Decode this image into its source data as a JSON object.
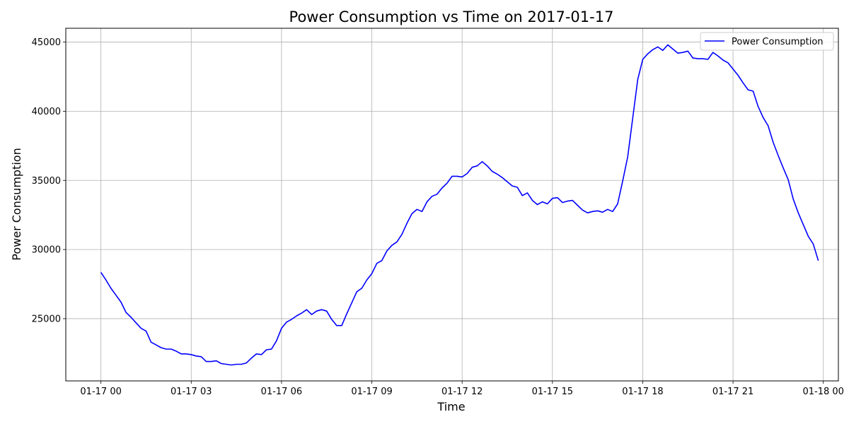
{
  "chart_data": {
    "type": "line",
    "title": "Power Consumption vs Time on 2017-01-17",
    "xlabel": "Time",
    "ylabel": "Power Consumption",
    "xlim": [
      "2017-01-16T22:50",
      "2017-01-18T00:30"
    ],
    "ylim": [
      20500,
      46000
    ],
    "x_ticks": [
      {
        "t": "2017-01-17T00:00",
        "label": "01-17 00"
      },
      {
        "t": "2017-01-17T03:00",
        "label": "01-17 03"
      },
      {
        "t": "2017-01-17T06:00",
        "label": "01-17 06"
      },
      {
        "t": "2017-01-17T09:00",
        "label": "01-17 09"
      },
      {
        "t": "2017-01-17T12:00",
        "label": "01-17 12"
      },
      {
        "t": "2017-01-17T15:00",
        "label": "01-17 15"
      },
      {
        "t": "2017-01-17T18:00",
        "label": "01-17 18"
      },
      {
        "t": "2017-01-17T21:00",
        "label": "01-17 21"
      },
      {
        "t": "2017-01-18T00:00",
        "label": "01-18 00"
      }
    ],
    "y_ticks": [
      {
        "v": 25000,
        "label": "25000"
      },
      {
        "v": 30000,
        "label": "30000"
      },
      {
        "v": 35000,
        "label": "35000"
      },
      {
        "v": 40000,
        "label": "40000"
      },
      {
        "v": 45000,
        "label": "45000"
      }
    ],
    "grid": true,
    "legend_position": "top-right",
    "series": [
      {
        "name": "Power Consumption",
        "color": "#0000ff",
        "x": [
          "2017-01-17T00:00",
          "2017-01-17T00:10",
          "2017-01-17T00:20",
          "2017-01-17T00:30",
          "2017-01-17T00:40",
          "2017-01-17T00:50",
          "2017-01-17T01:00",
          "2017-01-17T01:10",
          "2017-01-17T01:20",
          "2017-01-17T01:30",
          "2017-01-17T01:40",
          "2017-01-17T01:50",
          "2017-01-17T02:00",
          "2017-01-17T02:10",
          "2017-01-17T02:20",
          "2017-01-17T02:30",
          "2017-01-17T02:40",
          "2017-01-17T02:50",
          "2017-01-17T03:00",
          "2017-01-17T03:10",
          "2017-01-17T03:20",
          "2017-01-17T03:30",
          "2017-01-17T03:40",
          "2017-01-17T03:50",
          "2017-01-17T04:00",
          "2017-01-17T04:10",
          "2017-01-17T04:20",
          "2017-01-17T04:30",
          "2017-01-17T04:40",
          "2017-01-17T04:50",
          "2017-01-17T05:00",
          "2017-01-17T05:10",
          "2017-01-17T05:20",
          "2017-01-17T05:30",
          "2017-01-17T05:40",
          "2017-01-17T05:50",
          "2017-01-17T06:00",
          "2017-01-17T06:10",
          "2017-01-17T06:20",
          "2017-01-17T06:30",
          "2017-01-17T06:40",
          "2017-01-17T06:50",
          "2017-01-17T07:00",
          "2017-01-17T07:10",
          "2017-01-17T07:20",
          "2017-01-17T07:30",
          "2017-01-17T07:40",
          "2017-01-17T07:50",
          "2017-01-17T08:00",
          "2017-01-17T08:10",
          "2017-01-17T08:20",
          "2017-01-17T08:30",
          "2017-01-17T08:40",
          "2017-01-17T08:50",
          "2017-01-17T09:00",
          "2017-01-17T09:10",
          "2017-01-17T09:20",
          "2017-01-17T09:30",
          "2017-01-17T09:40",
          "2017-01-17T09:50",
          "2017-01-17T10:00",
          "2017-01-17T10:10",
          "2017-01-17T10:20",
          "2017-01-17T10:30",
          "2017-01-17T10:40",
          "2017-01-17T10:50",
          "2017-01-17T11:00",
          "2017-01-17T11:10",
          "2017-01-17T11:20",
          "2017-01-17T11:30",
          "2017-01-17T11:40",
          "2017-01-17T11:50",
          "2017-01-17T12:00",
          "2017-01-17T12:10",
          "2017-01-17T12:20",
          "2017-01-17T12:30",
          "2017-01-17T12:40",
          "2017-01-17T12:50",
          "2017-01-17T13:00",
          "2017-01-17T13:10",
          "2017-01-17T13:20",
          "2017-01-17T13:30",
          "2017-01-17T13:40",
          "2017-01-17T13:50",
          "2017-01-17T14:00",
          "2017-01-17T14:10",
          "2017-01-17T14:20",
          "2017-01-17T14:30",
          "2017-01-17T14:40",
          "2017-01-17T14:50",
          "2017-01-17T15:00",
          "2017-01-17T15:10",
          "2017-01-17T15:20",
          "2017-01-17T15:30",
          "2017-01-17T15:40",
          "2017-01-17T15:50",
          "2017-01-17T16:00",
          "2017-01-17T16:10",
          "2017-01-17T16:20",
          "2017-01-17T16:30",
          "2017-01-17T16:40",
          "2017-01-17T16:50",
          "2017-01-17T17:00",
          "2017-01-17T17:10",
          "2017-01-17T17:20",
          "2017-01-17T17:30",
          "2017-01-17T17:40",
          "2017-01-17T17:50",
          "2017-01-17T18:00",
          "2017-01-17T18:10",
          "2017-01-17T18:20",
          "2017-01-17T18:30",
          "2017-01-17T18:40",
          "2017-01-17T18:50",
          "2017-01-17T19:00",
          "2017-01-17T19:10",
          "2017-01-17T19:20",
          "2017-01-17T19:30",
          "2017-01-17T19:40",
          "2017-01-17T19:50",
          "2017-01-17T20:00",
          "2017-01-17T20:10",
          "2017-01-17T20:20",
          "2017-01-17T20:30",
          "2017-01-17T20:40",
          "2017-01-17T20:50",
          "2017-01-17T21:00",
          "2017-01-17T21:10",
          "2017-01-17T21:20",
          "2017-01-17T21:30",
          "2017-01-17T21:40",
          "2017-01-17T21:50",
          "2017-01-17T22:00",
          "2017-01-17T22:10",
          "2017-01-17T22:20",
          "2017-01-17T22:30",
          "2017-01-17T22:40",
          "2017-01-17T22:50",
          "2017-01-17T23:00",
          "2017-01-17T23:10",
          "2017-01-17T23:20",
          "2017-01-17T23:30",
          "2017-01-17T23:40",
          "2017-01-17T23:50"
        ],
        "y": [
          28350,
          27800,
          27200,
          26700,
          26200,
          25450,
          25100,
          24700,
          24300,
          24100,
          23300,
          23100,
          22900,
          22800,
          22800,
          22650,
          22450,
          22450,
          22400,
          22300,
          22250,
          21900,
          21900,
          21950,
          21750,
          21700,
          21650,
          21700,
          21700,
          21800,
          22150,
          22450,
          22400,
          22750,
          22800,
          23400,
          24300,
          24750,
          24950,
          25200,
          25400,
          25650,
          25300,
          25550,
          25650,
          25550,
          24950,
          24500,
          24500,
          25350,
          26150,
          26950,
          27200,
          27800,
          28250,
          29000,
          29200,
          29900,
          30300,
          30550,
          31100,
          31900,
          32600,
          32900,
          32750,
          33450,
          33850,
          34000,
          34450,
          34800,
          35300,
          35300,
          35250,
          35500,
          35950,
          36050,
          36350,
          36050,
          35650,
          35450,
          35200,
          34900,
          34600,
          34500,
          33900,
          34100,
          33550,
          33250,
          33450,
          33300,
          33700,
          33750,
          33400,
          33500,
          33550,
          33200,
          32850,
          32650,
          32750,
          32800,
          32700,
          32900,
          32750,
          33300,
          34950,
          36700,
          39500,
          42300,
          43750,
          44150,
          44450,
          44650,
          44400,
          44800,
          44500,
          44200,
          44250,
          44350,
          43850,
          43800,
          43800,
          43750,
          44250,
          44000,
          43700,
          43500,
          43050,
          42600,
          42050,
          41550,
          41450,
          40350,
          39550,
          38950,
          37750,
          36800,
          35900,
          35050,
          33650,
          32650,
          31800,
          30950,
          30400,
          29200
        ]
      }
    ]
  }
}
